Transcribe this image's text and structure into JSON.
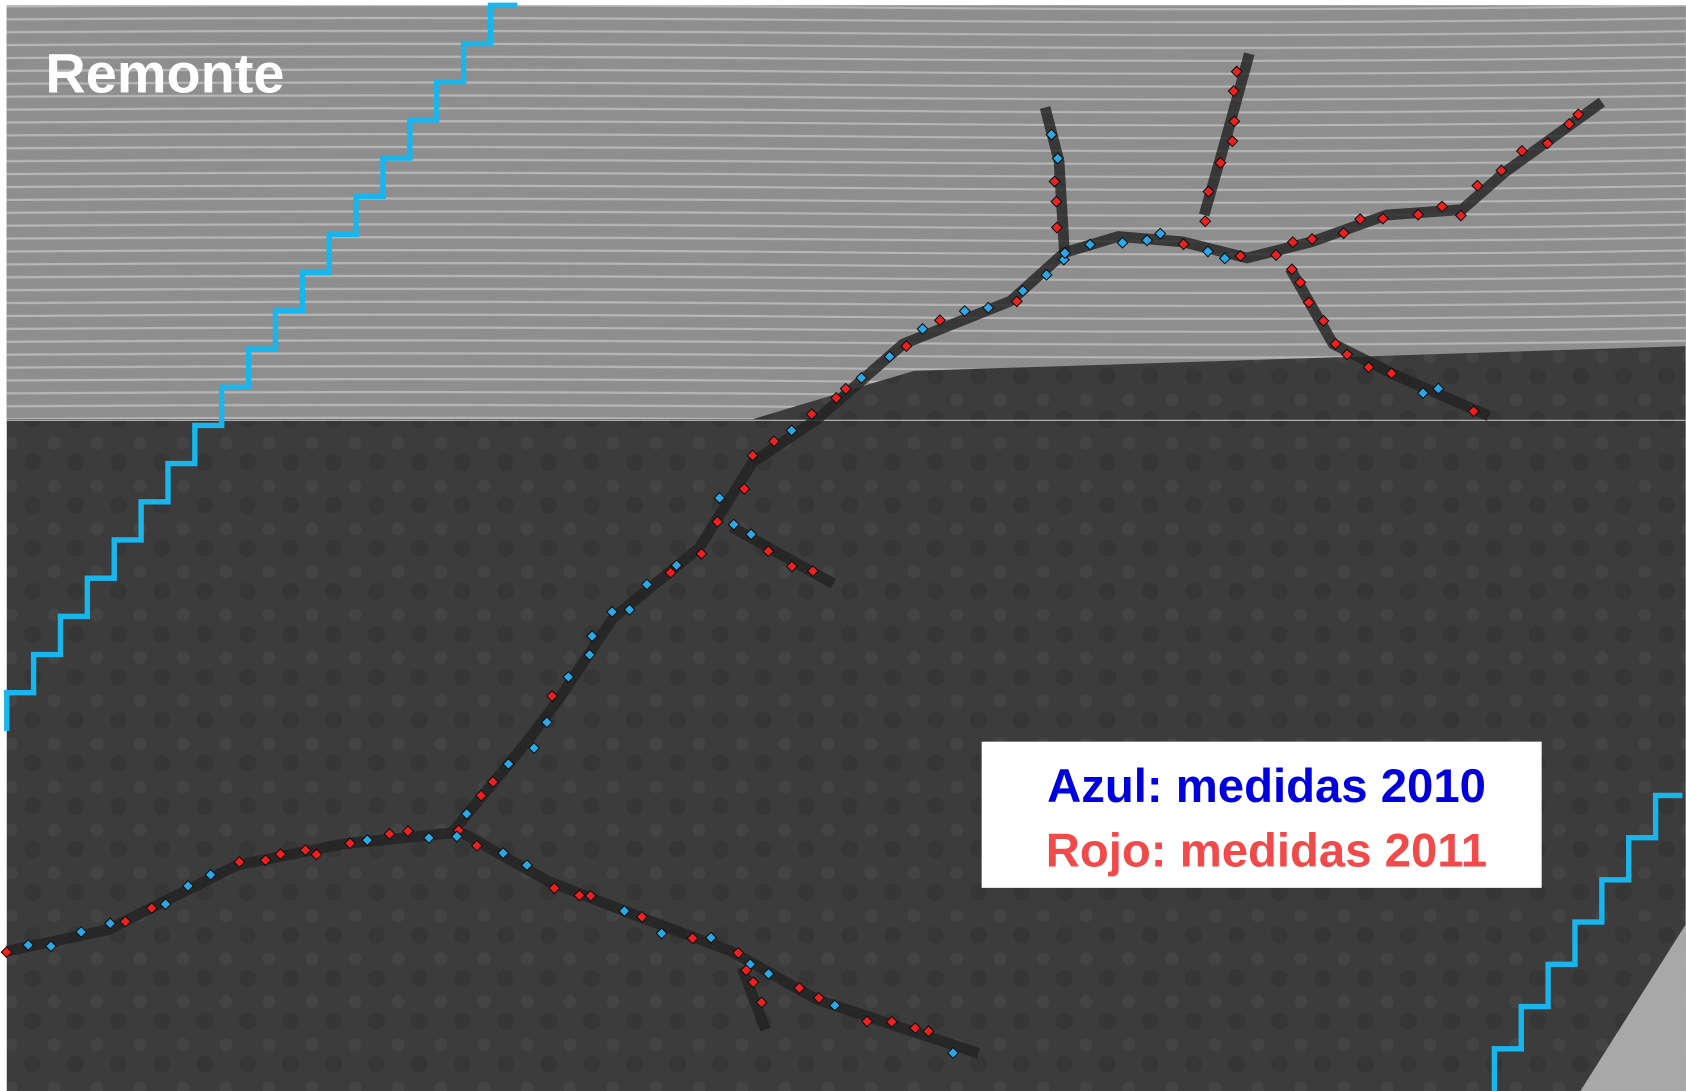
{
  "title": "Remonte",
  "legend": {
    "items": [
      "Azul: medidas 2010",
      "Rojo: medidas 2011"
    ]
  }
}
